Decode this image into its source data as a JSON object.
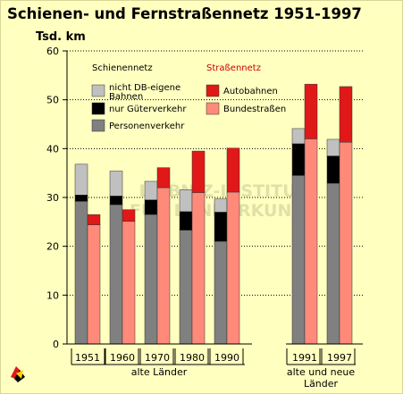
{
  "title": "Schienen- und Fernstraßennetz 1951-1997",
  "chart_data": {
    "type": "bar",
    "title": "Schienen- und Fernstraßennetz 1951-1997",
    "ylabel": "Tsd. km",
    "xlabel": "",
    "ylim": [
      0,
      60
    ],
    "yticks": [
      "0",
      "10",
      "20",
      "30",
      "40",
      "50",
      "60"
    ],
    "categories": [
      "1951",
      "1960",
      "1970",
      "1980",
      "1990",
      "1991",
      "1997"
    ],
    "groups": [
      {
        "label": "alte Länder",
        "categories": [
          "1951",
          "1960",
          "1970",
          "1980",
          "1990"
        ]
      },
      {
        "label": "alte und neue Länder",
        "categories": [
          "1991",
          "1997"
        ]
      }
    ],
    "legend_groups": [
      {
        "title": "Schienennetz",
        "color": "#000000"
      },
      {
        "title": "Straßennetz",
        "color": "#cc0000"
      }
    ],
    "stacks": [
      {
        "name": "Schienennetz",
        "series": [
          {
            "name": "Personenverkehr",
            "color": "#808080",
            "values": [
              29.2,
              28.5,
              26.5,
              23.3,
              21.0,
              34.5,
              32.9
            ]
          },
          {
            "name": "nur Güterverkehr",
            "color": "#000000",
            "values": [
              1.3,
              1.8,
              3.0,
              3.8,
              6.0,
              6.5,
              5.6
            ]
          },
          {
            "name": "nicht DB-eigene Bahnen",
            "color": "#c0c0c0",
            "values": [
              6.3,
              5.1,
              3.8,
              4.5,
              2.7,
              3.1,
              3.4
            ]
          }
        ]
      },
      {
        "name": "Straßennetz",
        "series": [
          {
            "name": "Bundestraßen",
            "color": "#ff8a7a",
            "values": [
              24.4,
              25.1,
              32.0,
              31.0,
              31.1,
              42.0,
              41.3
            ]
          },
          {
            "name": "Autobahnen",
            "color": "#e01818",
            "values": [
              2.1,
              2.4,
              4.1,
              8.5,
              9.0,
              11.2,
              11.4
            ]
          }
        ]
      }
    ],
    "grid": true,
    "gridlines": "dotted",
    "watermark": "LEIBNIZ-INSTITUT FÜR LÄNDERKUNDE"
  }
}
